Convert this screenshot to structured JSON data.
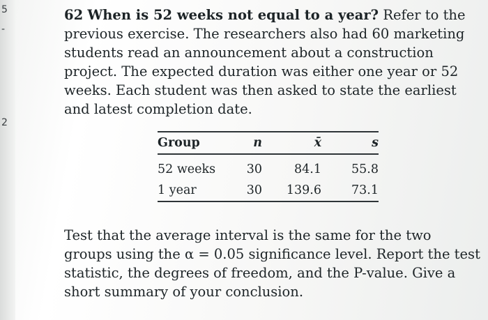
{
  "margin_marks": [
    "5",
    "-",
    "2"
  ],
  "problem": {
    "number": "62",
    "heading": "When is 52 weeks not equal to a year?",
    "body": "Refer to the previous exercise. The researchers also had 60 marketing students read an announcement about a construction project. The expected duration was either one year or 52 weeks. Each student was then asked to state the earliest and latest completion date."
  },
  "table": {
    "headers": [
      "Group",
      "n",
      "x̄",
      "s"
    ],
    "rows": [
      [
        "52 weeks",
        "30",
        "84.1",
        "55.8"
      ],
      [
        "1 year",
        "30",
        "139.6",
        "73.1"
      ]
    ]
  },
  "question": {
    "text": "Test that the average interval is the same for the two groups using the α = 0.05 significance level. Report the test statistic, the degrees of freedom, and the P-value. Give a short summary of your conclusion."
  }
}
